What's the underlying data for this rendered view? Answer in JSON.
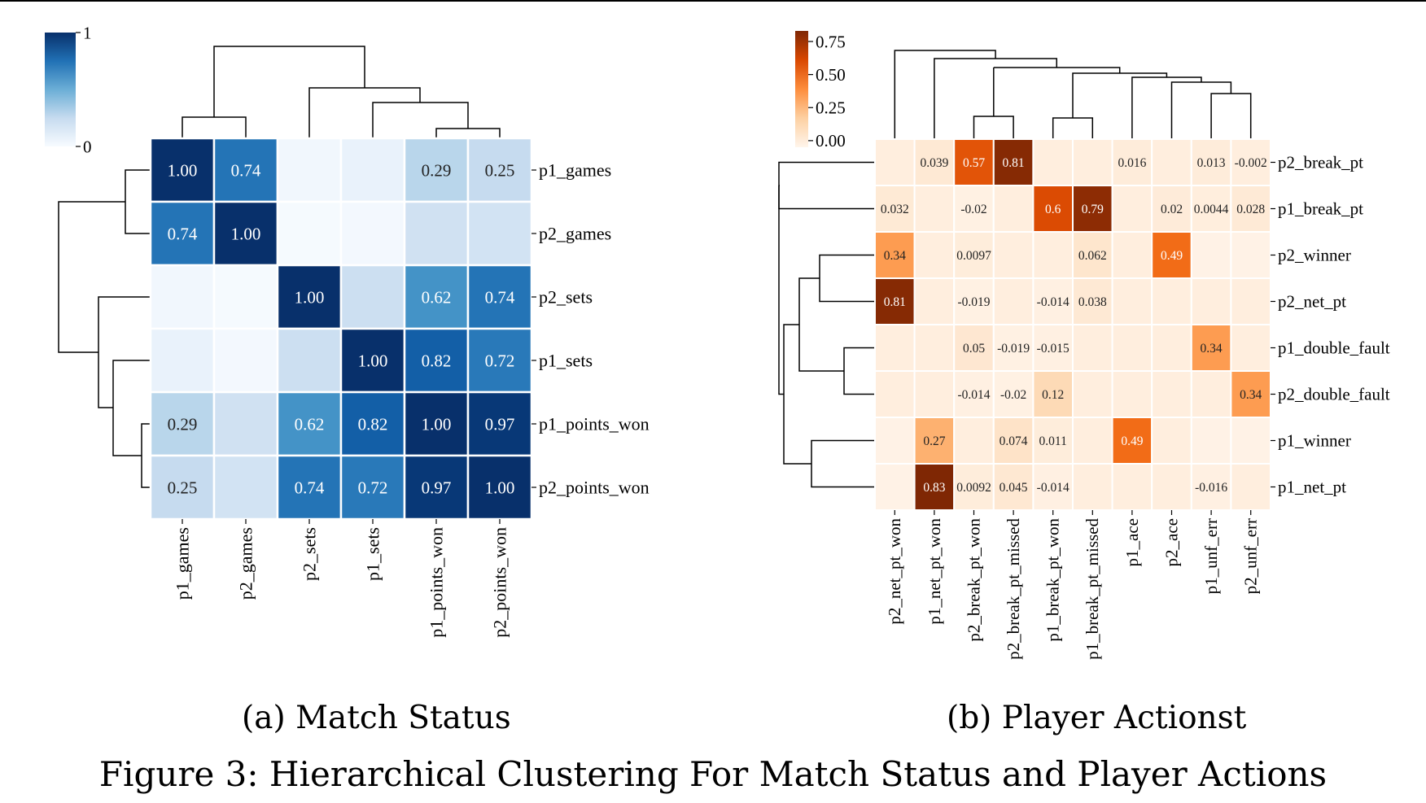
{
  "figure_caption": "Figure 3: Hierarchical Clustering For Match Status and Player Actions",
  "chart_data": [
    {
      "type": "heatmap",
      "caption": "(a) Match Status",
      "colormap": "Blues",
      "colorbar": {
        "ticks": [
          0,
          1
        ],
        "tick_labels": [
          "0",
          "1"
        ],
        "vmin": 0,
        "vmax": 1
      },
      "columns": [
        "p1_games",
        "p2_games",
        "p2_sets",
        "p1_sets",
        "p1_points_won",
        "p2_points_won"
      ],
      "rows": [
        "p1_games",
        "p2_games",
        "p2_sets",
        "p1_sets",
        "p1_points_won",
        "p2_points_won"
      ],
      "values": [
        [
          1.0,
          0.74,
          0.03,
          0.07,
          0.29,
          0.25
        ],
        [
          0.74,
          1.0,
          0.01,
          0.02,
          0.2,
          0.19
        ],
        [
          0.03,
          0.01,
          1.0,
          0.22,
          0.62,
          0.74
        ],
        [
          0.07,
          0.02,
          0.22,
          1.0,
          0.82,
          0.72
        ],
        [
          0.29,
          0.2,
          0.62,
          0.82,
          1.0,
          0.97
        ],
        [
          0.25,
          0.19,
          0.74,
          0.72,
          0.97,
          1.0
        ]
      ],
      "annotations": [
        [
          "1.00",
          "0.74",
          "",
          "",
          "0.29",
          "0.25"
        ],
        [
          "0.74",
          "1.00",
          "",
          "",
          "",
          ""
        ],
        [
          "",
          "",
          "1.00",
          "",
          "0.62",
          "0.74"
        ],
        [
          "",
          "",
          "",
          "1.00",
          "0.82",
          "0.72"
        ],
        [
          "0.29",
          "",
          "0.62",
          "0.82",
          "1.00",
          "0.97"
        ],
        [
          "0.25",
          "",
          "0.74",
          "0.72",
          "0.97",
          "1.00"
        ]
      ],
      "dendrogram": "row and column"
    },
    {
      "type": "heatmap",
      "caption": "(b) Player Actionst",
      "colormap": "Oranges",
      "colorbar": {
        "ticks": [
          0.0,
          0.25,
          0.5,
          0.75
        ],
        "tick_labels": [
          "0.00",
          "0.25",
          "0.50",
          "0.75"
        ],
        "vmin": -0.05,
        "vmax": 0.83
      },
      "columns": [
        "p2_net_pt_won",
        "p1_net_pt_won",
        "p2_break_pt_won",
        "p2_break_pt_missed",
        "p1_break_pt_won",
        "p1_break_pt_missed",
        "p1_ace",
        "p2_ace",
        "p1_unf_err",
        "p2_unf_err"
      ],
      "rows": [
        "p2_break_pt",
        "p1_break_pt",
        "p2_winner",
        "p2_net_pt",
        "p1_double_fault",
        "p2_double_fault",
        "p1_winner",
        "p1_net_pt"
      ],
      "values": [
        [
          0.0,
          0.039,
          0.57,
          0.81,
          0.0,
          0.0,
          0.016,
          0.0,
          0.013,
          -0.002
        ],
        [
          0.032,
          0.0,
          -0.02,
          0.0,
          0.6,
          0.79,
          0.0,
          0.02,
          0.0044,
          0.028
        ],
        [
          0.34,
          0.0,
          0.0097,
          0.0,
          0.0,
          0.062,
          0.0,
          0.49,
          -0.03,
          -0.03
        ],
        [
          0.81,
          0.0,
          -0.019,
          0.0,
          -0.014,
          0.038,
          0.0,
          0.0,
          0.0,
          0.0
        ],
        [
          0.0,
          0.0,
          0.05,
          -0.019,
          -0.015,
          0.0,
          0.0,
          0.0,
          0.34,
          0.0
        ],
        [
          0.0,
          0.0,
          -0.014,
          -0.02,
          0.12,
          0.0,
          0.0,
          0.0,
          0.0,
          0.34
        ],
        [
          -0.03,
          0.27,
          0.0,
          0.074,
          0.011,
          0.0,
          0.49,
          0.0,
          -0.03,
          -0.03
        ],
        [
          -0.03,
          0.83,
          0.0092,
          0.045,
          -0.014,
          0.0,
          0.0,
          0.0,
          -0.016,
          0.0
        ]
      ],
      "annotations": [
        [
          "",
          "0.039",
          "0.57",
          "0.81",
          "",
          "",
          "0.016",
          "",
          "0.013",
          "-0.002"
        ],
        [
          "0.032",
          "",
          "-0.02",
          "",
          "0.6",
          "0.79",
          "",
          "0.02",
          "0.0044",
          "0.028"
        ],
        [
          "0.34",
          "",
          "0.0097",
          "",
          "",
          "0.062",
          "",
          "0.49",
          "",
          ""
        ],
        [
          "0.81",
          "",
          "-0.019",
          "",
          "-0.014",
          "0.038",
          "",
          "",
          "",
          ""
        ],
        [
          "",
          "",
          "0.05",
          "-0.019",
          "-0.015",
          "",
          "",
          "",
          "0.34",
          ""
        ],
        [
          "",
          "",
          "-0.014",
          "-0.02",
          "0.12",
          "",
          "",
          "",
          "",
          "0.34"
        ],
        [
          "",
          "0.27",
          "",
          "0.074",
          "0.011",
          "",
          "0.49",
          "",
          "",
          ""
        ],
        [
          "",
          "0.83",
          "0.0092",
          "0.045",
          "-0.014",
          "",
          "",
          "",
          "-0.016",
          ""
        ]
      ],
      "dendrogram": "row and column"
    }
  ]
}
